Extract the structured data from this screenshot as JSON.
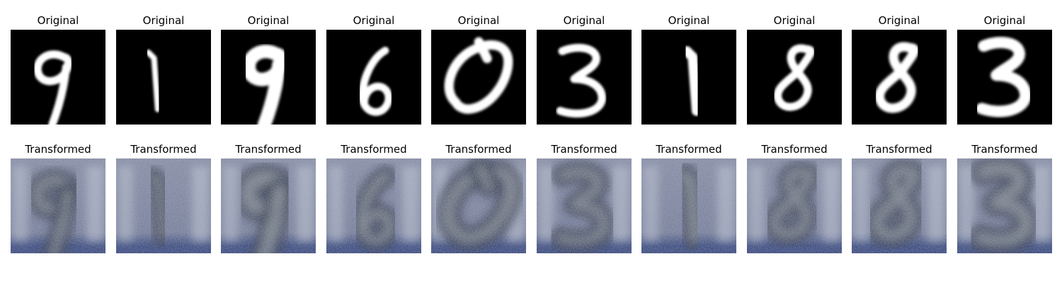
{
  "figure": {
    "top_row_title": "Original",
    "bottom_row_title": "Transformed",
    "samples": [
      {
        "digit": "9",
        "original_icon": "handwritten-digit-9",
        "transformed_icon": "street-view-style-digit-9"
      },
      {
        "digit": "1",
        "original_icon": "handwritten-digit-1",
        "transformed_icon": "street-view-style-digit-1"
      },
      {
        "digit": "9",
        "original_icon": "handwritten-digit-9",
        "transformed_icon": "street-view-style-digit-9"
      },
      {
        "digit": "6",
        "original_icon": "handwritten-digit-6",
        "transformed_icon": "street-view-style-digit-6"
      },
      {
        "digit": "0",
        "original_icon": "handwritten-digit-0",
        "transformed_icon": "street-view-style-digit-0"
      },
      {
        "digit": "3",
        "original_icon": "handwritten-digit-3",
        "transformed_icon": "street-view-style-digit-3"
      },
      {
        "digit": "1",
        "original_icon": "handwritten-digit-1",
        "transformed_icon": "street-view-style-digit-1"
      },
      {
        "digit": "8",
        "original_icon": "handwritten-digit-8",
        "transformed_icon": "street-view-style-digit-8"
      },
      {
        "digit": "8",
        "original_icon": "handwritten-digit-8",
        "transformed_icon": "street-view-style-digit-8"
      },
      {
        "digit": "3",
        "original_icon": "handwritten-digit-3",
        "transformed_icon": "street-view-style-digit-3"
      }
    ]
  },
  "colors": {
    "original_background": "#000000",
    "original_stroke": "#ffffff",
    "transformed_base": "#7f87a0",
    "transformed_dark": "#20283f",
    "transformed_light": "#c9d0de",
    "transformed_bottom_band": "#283a74"
  }
}
